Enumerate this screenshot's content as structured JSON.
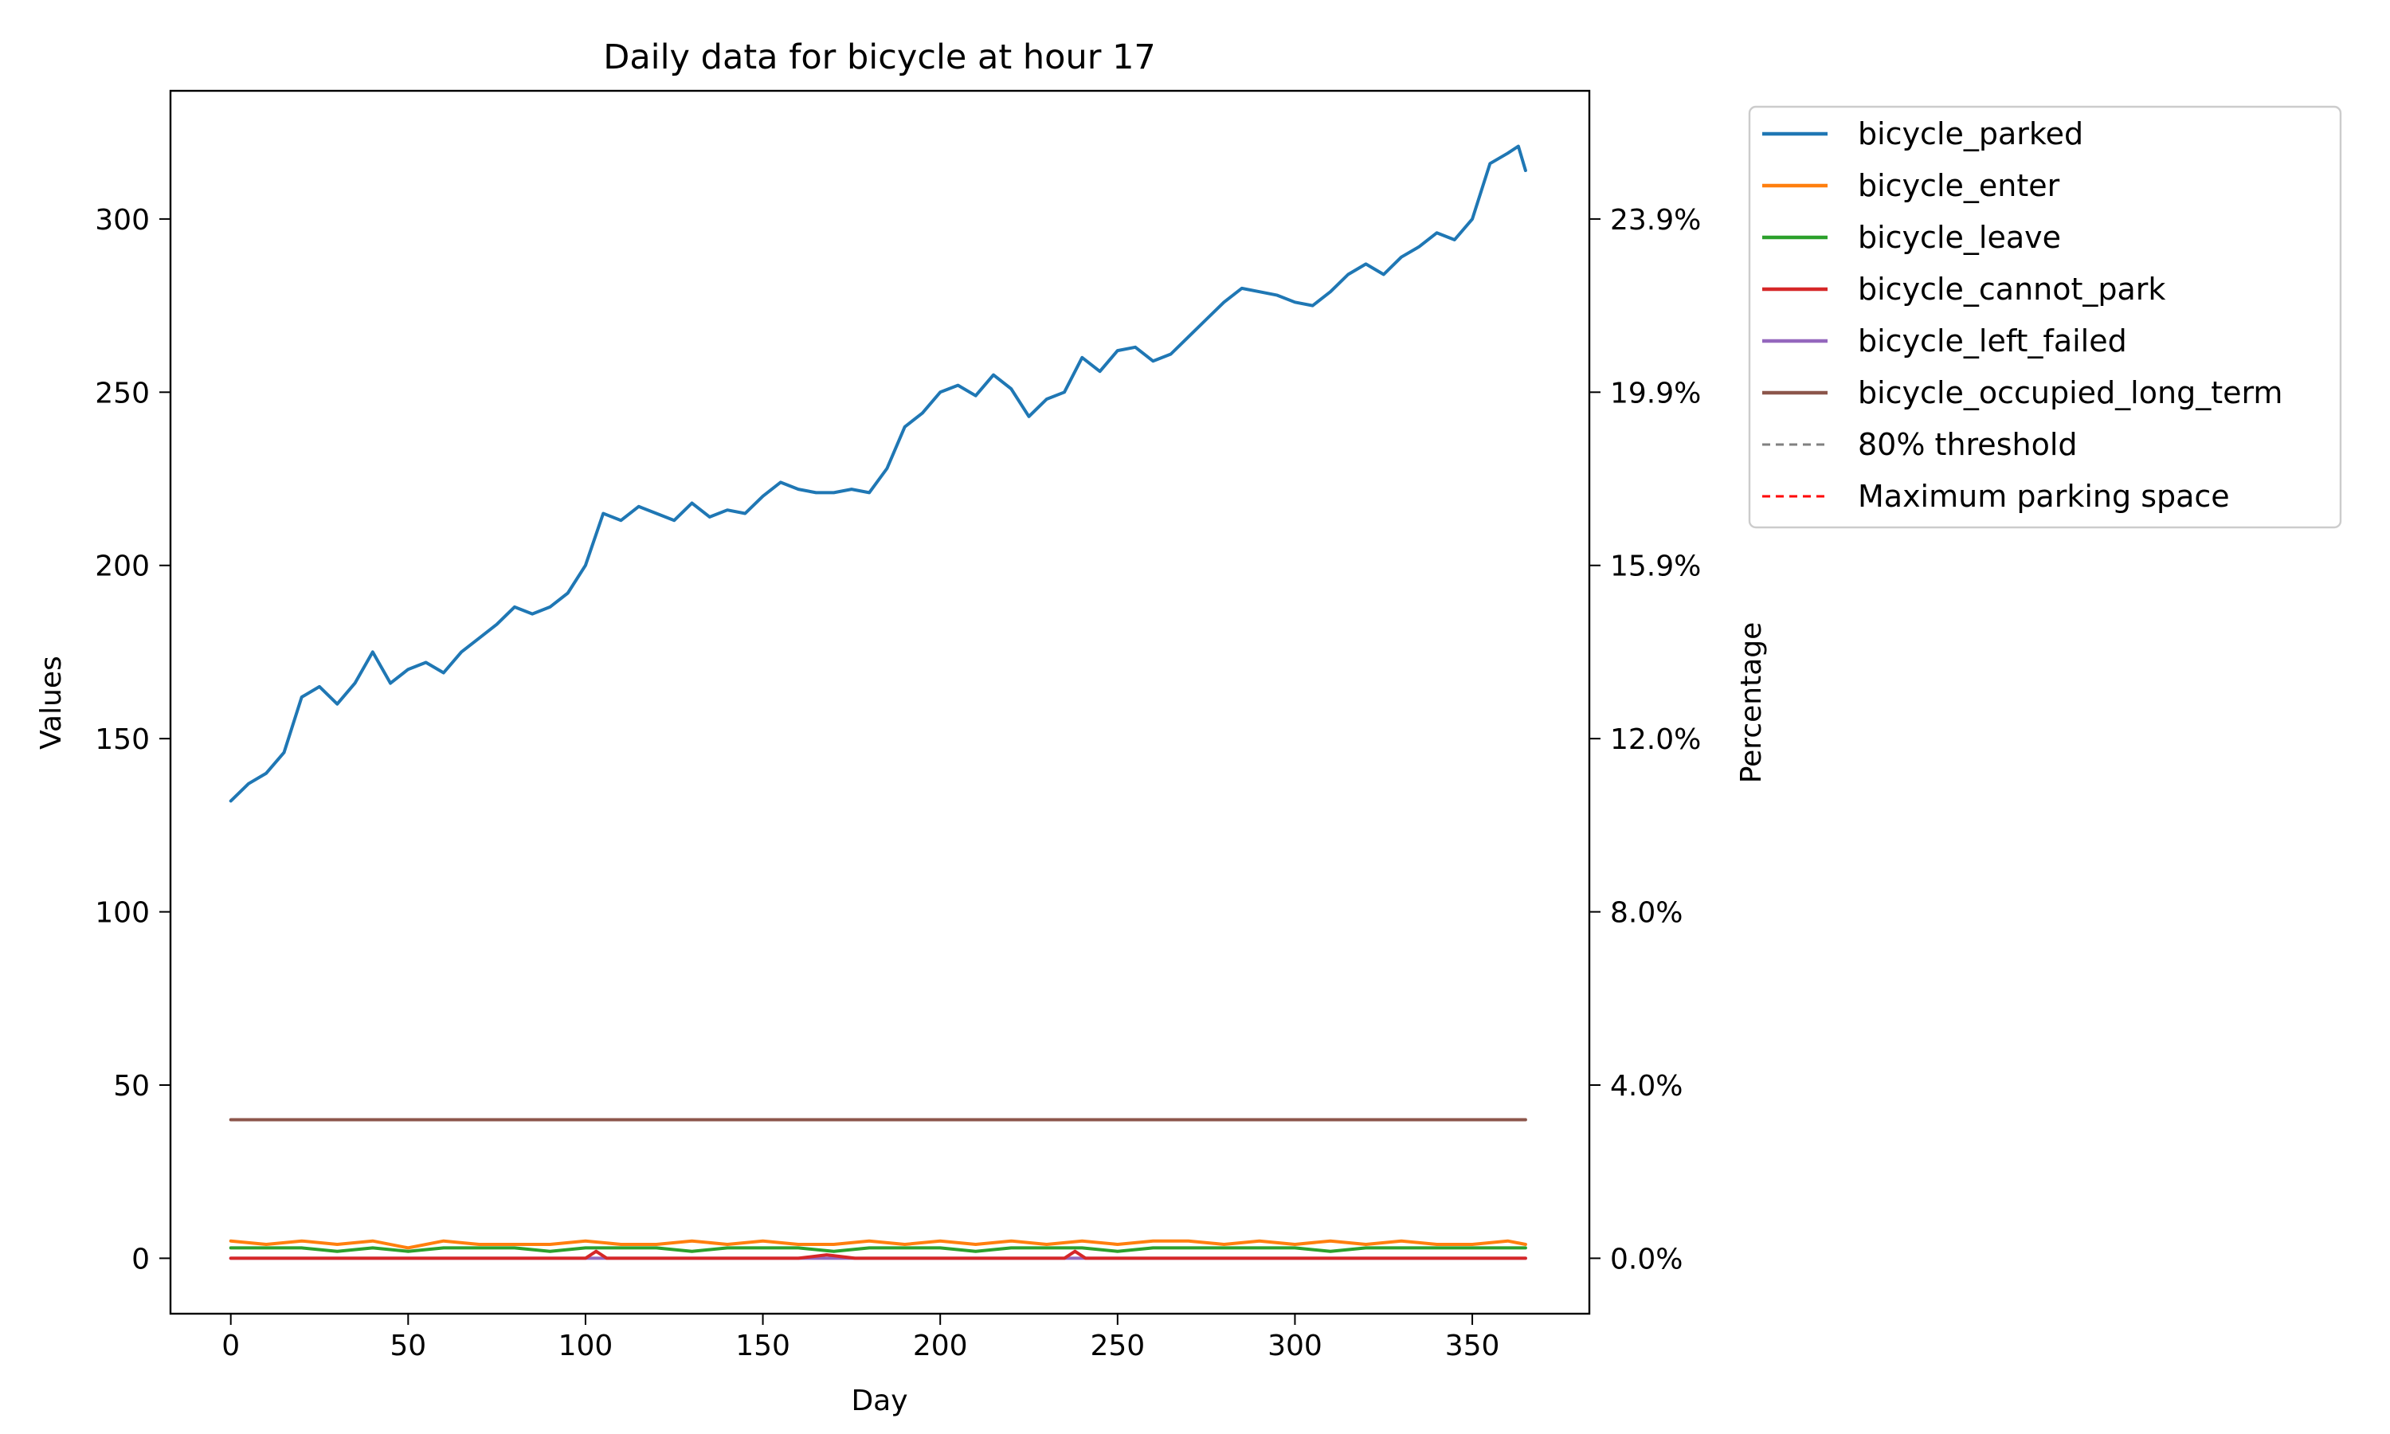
{
  "chart_data": {
    "type": "line",
    "title": "Daily data for bicycle at hour 17",
    "xlabel": "Day",
    "ylabel": "Values",
    "y2label": "Percentage",
    "xlim": [
      -17,
      383
    ],
    "ylim": [
      -16,
      337
    ],
    "xticks": [
      "0",
      "50",
      "100",
      "150",
      "200",
      "250",
      "300",
      "350"
    ],
    "xtick_values": [
      0,
      50,
      100,
      150,
      200,
      250,
      300,
      350
    ],
    "yticks": [
      "0",
      "50",
      "100",
      "150",
      "200",
      "250",
      "300"
    ],
    "ytick_values": [
      0,
      50,
      100,
      150,
      200,
      250,
      300
    ],
    "y2ticks": [
      "0.0%",
      "4.0%",
      "8.0%",
      "12.0%",
      "15.9%",
      "19.9%",
      "23.9%"
    ],
    "legend_position": "outside upper-right",
    "grid": false,
    "series": [
      {
        "name": "bicycle_parked",
        "color": "#1f77b4",
        "style": "solid",
        "x": [
          0,
          5,
          10,
          15,
          20,
          25,
          30,
          35,
          40,
          45,
          50,
          55,
          60,
          65,
          70,
          75,
          80,
          85,
          90,
          95,
          100,
          105,
          110,
          115,
          120,
          125,
          130,
          135,
          140,
          145,
          150,
          155,
          160,
          165,
          170,
          175,
          180,
          185,
          190,
          195,
          200,
          205,
          210,
          215,
          220,
          225,
          230,
          235,
          240,
          245,
          250,
          255,
          260,
          265,
          270,
          275,
          280,
          285,
          290,
          295,
          300,
          305,
          310,
          315,
          320,
          325,
          330,
          335,
          340,
          345,
          350,
          355,
          360,
          363,
          365
        ],
        "values": [
          132,
          137,
          140,
          146,
          162,
          165,
          160,
          166,
          175,
          166,
          170,
          172,
          169,
          175,
          179,
          183,
          188,
          186,
          188,
          192,
          200,
          215,
          213,
          217,
          215,
          213,
          218,
          214,
          216,
          215,
          220,
          224,
          222,
          221,
          221,
          222,
          221,
          228,
          240,
          244,
          250,
          252,
          249,
          255,
          251,
          243,
          248,
          250,
          260,
          256,
          262,
          263,
          259,
          261,
          266,
          271,
          276,
          280,
          279,
          278,
          276,
          275,
          279,
          284,
          287,
          284,
          289,
          292,
          296,
          294,
          300,
          316,
          319,
          321,
          314
        ]
      },
      {
        "name": "bicycle_enter",
        "color": "#ff7f0e",
        "style": "solid",
        "x": [
          0,
          10,
          20,
          30,
          40,
          50,
          60,
          70,
          80,
          90,
          100,
          110,
          120,
          130,
          140,
          150,
          160,
          170,
          180,
          190,
          200,
          210,
          220,
          230,
          240,
          250,
          260,
          270,
          280,
          290,
          300,
          310,
          320,
          330,
          340,
          350,
          360,
          365
        ],
        "values": [
          5,
          4,
          5,
          4,
          5,
          3,
          5,
          4,
          4,
          4,
          5,
          4,
          4,
          5,
          4,
          5,
          4,
          4,
          5,
          4,
          5,
          4,
          5,
          4,
          5,
          4,
          5,
          5,
          4,
          5,
          4,
          5,
          4,
          5,
          4,
          4,
          5,
          4
        ]
      },
      {
        "name": "bicycle_leave",
        "color": "#2ca02c",
        "style": "solid",
        "x": [
          0,
          10,
          20,
          30,
          40,
          50,
          60,
          70,
          80,
          90,
          100,
          110,
          120,
          130,
          140,
          150,
          160,
          170,
          180,
          190,
          200,
          210,
          220,
          230,
          240,
          250,
          260,
          270,
          280,
          290,
          300,
          310,
          320,
          330,
          340,
          350,
          360,
          365
        ],
        "values": [
          3,
          3,
          3,
          2,
          3,
          2,
          3,
          3,
          3,
          2,
          3,
          3,
          3,
          2,
          3,
          3,
          3,
          2,
          3,
          3,
          3,
          2,
          3,
          3,
          3,
          2,
          3,
          3,
          3,
          3,
          3,
          2,
          3,
          3,
          3,
          3,
          3,
          3
        ]
      },
      {
        "name": "bicycle_cannot_park",
        "color": "#d62728",
        "style": "solid",
        "x": [
          0,
          100,
          103,
          106,
          160,
          168,
          176,
          235,
          238,
          241,
          300,
          365
        ],
        "values": [
          0,
          0,
          2,
          0,
          0,
          1,
          0,
          0,
          2,
          0,
          0,
          0
        ]
      },
      {
        "name": "bicycle_left_failed",
        "color": "#9467bd",
        "style": "solid",
        "x": [
          0,
          365
        ],
        "values": [
          0,
          0
        ]
      },
      {
        "name": "bicycle_occupied_long_term",
        "color": "#8c564b",
        "style": "solid",
        "x": [
          0,
          365
        ],
        "values": [
          40,
          40
        ]
      },
      {
        "name": "80% threshold",
        "color": "#808080",
        "style": "dashed",
        "x": [],
        "values": []
      },
      {
        "name": "Maximum parking space",
        "color": "#ff0000",
        "style": "dashed",
        "x": [],
        "values": []
      }
    ]
  }
}
